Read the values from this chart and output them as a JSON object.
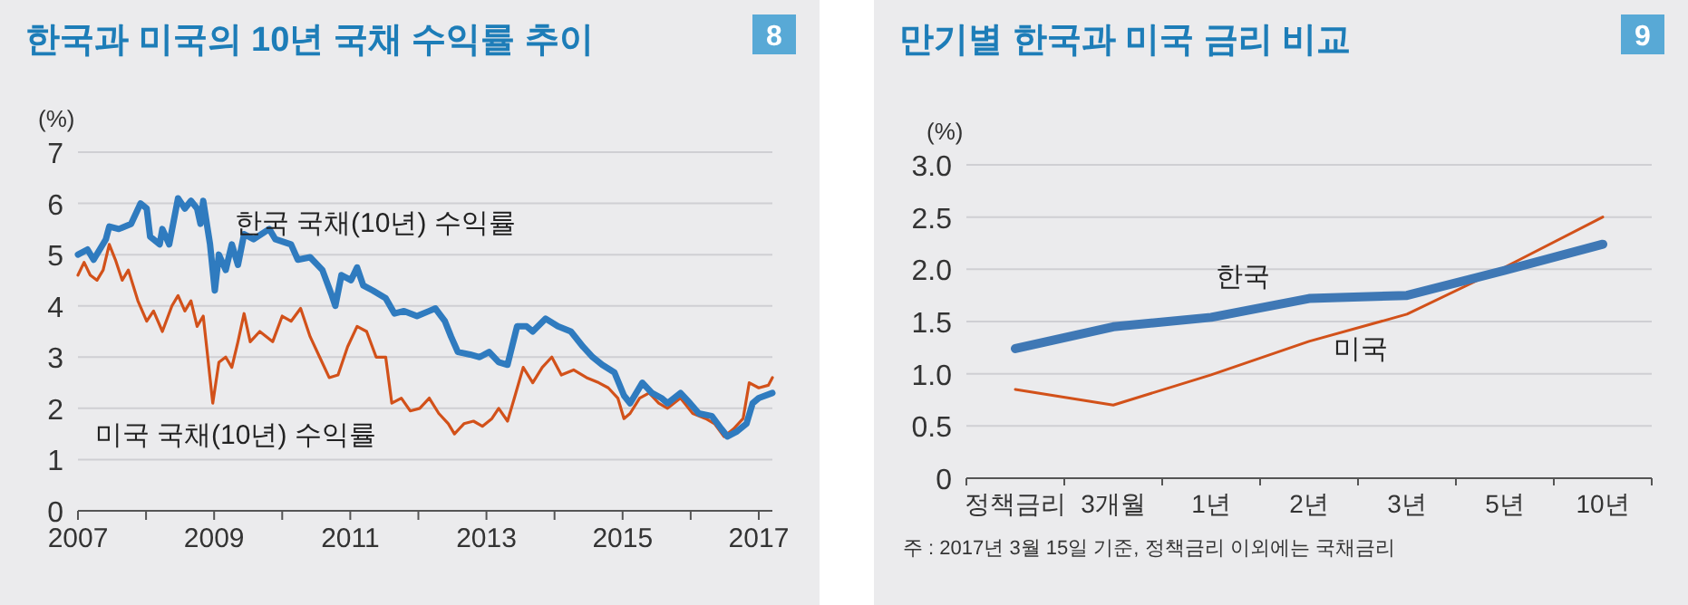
{
  "chart_data": [
    {
      "type": "line",
      "title": "한국과 미국의 10년 국채 수익률 추이",
      "annotations": [
        "8"
      ],
      "ylabel": "(%)",
      "grid": "y",
      "legend": false,
      "xlim": [
        2007,
        2017.2
      ],
      "xticks": [
        2007,
        {
          "value": 2008,
          "label": null
        },
        2009,
        {
          "value": 2010,
          "label": null
        },
        2011,
        {
          "value": 2012,
          "label": null
        },
        2013,
        {
          "value": 2014,
          "label": null
        },
        2015,
        {
          "value": 2016,
          "label": null
        },
        2017
      ],
      "ylim": [
        0,
        7
      ],
      "yticks": [
        0,
        1,
        2,
        3,
        4,
        5,
        6,
        7
      ],
      "series": [
        {
          "name": "한국 국채(10년) 수익률",
          "color": "#2f7bbf",
          "x": [
            2007.0,
            2007.14,
            2007.23,
            2007.41,
            2007.46,
            2007.6,
            2007.78,
            2007.92,
            2008.01,
            2008.06,
            2008.2,
            2008.24,
            2008.34,
            2008.47,
            2008.57,
            2008.66,
            2008.75,
            2008.8,
            2008.84,
            2008.94,
            2009.01,
            2009.07,
            2009.17,
            2009.26,
            2009.35,
            2009.44,
            2009.58,
            2009.81,
            2009.9,
            2010.13,
            2010.23,
            2010.41,
            2010.59,
            2010.73,
            2010.78,
            2010.87,
            2011.01,
            2011.1,
            2011.19,
            2011.33,
            2011.52,
            2011.65,
            2011.79,
            2011.98,
            2012.16,
            2012.25,
            2012.39,
            2012.48,
            2012.58,
            2012.76,
            2012.9,
            2013.04,
            2013.18,
            2013.31,
            2013.45,
            2013.59,
            2013.68,
            2013.87,
            2014.05,
            2014.24,
            2014.42,
            2014.56,
            2014.7,
            2014.88,
            2015.02,
            2015.11,
            2015.29,
            2015.43,
            2015.57,
            2015.66,
            2015.85,
            2015.99,
            2016.12,
            2016.31,
            2016.45,
            2016.54,
            2016.68,
            2016.82,
            2016.91,
            2017.0,
            2017.2
          ],
          "values": [
            5.0,
            5.1,
            4.9,
            5.3,
            5.55,
            5.5,
            5.6,
            6.0,
            5.9,
            5.35,
            5.2,
            5.5,
            5.2,
            6.1,
            5.9,
            6.05,
            5.9,
            5.6,
            6.05,
            5.2,
            4.3,
            5.0,
            4.7,
            5.2,
            4.8,
            5.4,
            5.3,
            5.5,
            5.3,
            5.2,
            4.9,
            4.95,
            4.7,
            4.2,
            4.0,
            4.6,
            4.5,
            4.75,
            4.4,
            4.3,
            4.15,
            3.85,
            3.9,
            3.8,
            3.9,
            3.95,
            3.7,
            3.4,
            3.1,
            3.05,
            3.0,
            3.1,
            2.9,
            2.85,
            3.6,
            3.6,
            3.5,
            3.75,
            3.6,
            3.5,
            3.2,
            3.0,
            2.85,
            2.7,
            2.25,
            2.1,
            2.5,
            2.3,
            2.2,
            2.1,
            2.3,
            2.1,
            1.9,
            1.85,
            1.6,
            1.45,
            1.55,
            1.7,
            2.1,
            2.2,
            2.3
          ]
        },
        {
          "name": "미국 국채(10년) 수익률",
          "color": "#d2511a",
          "x": [
            2007.0,
            2007.09,
            2007.18,
            2007.28,
            2007.37,
            2007.46,
            2007.55,
            2007.65,
            2007.74,
            2007.88,
            2008.01,
            2008.11,
            2008.24,
            2008.38,
            2008.47,
            2008.57,
            2008.66,
            2008.75,
            2008.84,
            2008.89,
            2008.98,
            2009.07,
            2009.17,
            2009.26,
            2009.35,
            2009.44,
            2009.53,
            2009.67,
            2009.86,
            2010.0,
            2010.13,
            2010.27,
            2010.41,
            2010.55,
            2010.69,
            2010.82,
            2010.96,
            2011.1,
            2011.24,
            2011.38,
            2011.52,
            2011.61,
            2011.75,
            2011.88,
            2012.02,
            2012.16,
            2012.3,
            2012.44,
            2012.53,
            2012.67,
            2012.81,
            2012.94,
            2013.08,
            2013.18,
            2013.31,
            2013.41,
            2013.54,
            2013.68,
            2013.82,
            2013.96,
            2014.1,
            2014.28,
            2014.47,
            2014.65,
            2014.79,
            2014.93,
            2015.02,
            2015.11,
            2015.25,
            2015.39,
            2015.53,
            2015.66,
            2015.85,
            2016.03,
            2016.22,
            2016.35,
            2016.49,
            2016.63,
            2016.77,
            2016.86,
            2017.0,
            2017.14,
            2017.2
          ],
          "values": [
            4.6,
            4.85,
            4.6,
            4.5,
            4.7,
            5.2,
            4.9,
            4.5,
            4.7,
            4.1,
            3.7,
            3.9,
            3.5,
            4.0,
            4.2,
            3.9,
            4.1,
            3.6,
            3.8,
            3.2,
            2.1,
            2.9,
            3.0,
            2.8,
            3.3,
            3.85,
            3.3,
            3.5,
            3.3,
            3.8,
            3.7,
            3.95,
            3.4,
            3.0,
            2.6,
            2.65,
            3.2,
            3.6,
            3.5,
            3.0,
            3.0,
            2.1,
            2.2,
            1.95,
            2.0,
            2.2,
            1.9,
            1.7,
            1.5,
            1.7,
            1.75,
            1.65,
            1.8,
            2.0,
            1.75,
            2.2,
            2.8,
            2.5,
            2.8,
            3.0,
            2.65,
            2.75,
            2.6,
            2.5,
            2.4,
            2.2,
            1.8,
            1.9,
            2.2,
            2.3,
            2.1,
            2.0,
            2.2,
            1.9,
            1.8,
            1.7,
            1.45,
            1.6,
            1.8,
            2.5,
            2.4,
            2.45,
            2.6
          ]
        }
      ]
    },
    {
      "type": "line",
      "title": "만기별 한국과 미국 금리 비교",
      "annotations": [
        "9",
        "주 : 2017년 3월 15일 기준, 정책금리 이외에는 국채금리"
      ],
      "ylabel": "(%)",
      "grid": "y",
      "legend": false,
      "categories": [
        "정책금리",
        "3개월",
        "1년",
        "2년",
        "3년",
        "5년",
        "10년"
      ],
      "ylim": [
        0,
        3.0
      ],
      "yticks": [
        0,
        {
          "value": 0.5,
          "label": "0.5"
        },
        {
          "value": 1.0,
          "label": "1.0"
        },
        1.5,
        {
          "value": 2.0,
          "label": "2.0"
        },
        2.5,
        {
          "value": 3.0,
          "label": "3.0"
        }
      ],
      "series": [
        {
          "name": "한국",
          "color": "#3f78b5",
          "values": [
            1.24,
            1.45,
            1.54,
            1.72,
            1.75,
            1.99,
            2.24
          ]
        },
        {
          "name": "미국",
          "color": "#d2511a",
          "values": [
            0.85,
            0.7,
            0.99,
            1.31,
            1.57,
            2.02,
            2.5
          ]
        }
      ]
    }
  ]
}
